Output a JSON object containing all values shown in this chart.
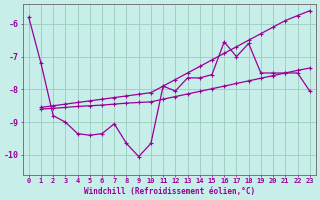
{
  "background_color": "#c8eeea",
  "grid_color": "#99ccbb",
  "line_color": "#990099",
  "xlabel": "Windchill (Refroidissement éolien,°C)",
  "xlim": [
    -0.5,
    23.5
  ],
  "ylim": [
    -10.6,
    -5.4
  ],
  "yticks": [
    -10,
    -9,
    -8,
    -7,
    -6
  ],
  "xticks": [
    0,
    1,
    2,
    3,
    4,
    5,
    6,
    7,
    8,
    9,
    10,
    11,
    12,
    13,
    14,
    15,
    16,
    17,
    18,
    19,
    20,
    21,
    22,
    23
  ],
  "s1_x": [
    0,
    1,
    2,
    3,
    4,
    5,
    6,
    7,
    8,
    9,
    10,
    11,
    12,
    13,
    14,
    15,
    16,
    17,
    18,
    19,
    20,
    21,
    22,
    23
  ],
  "s1_y": [
    -5.8,
    -7.2,
    -8.8,
    -9.0,
    -9.35,
    -9.4,
    -9.35,
    -9.05,
    -9.65,
    -10.05,
    -9.65,
    -7.9,
    -8.05,
    -7.65,
    -7.65,
    -7.55,
    -6.55,
    -7.0,
    -6.6,
    -7.5,
    -7.5,
    -7.5,
    -7.5,
    -8.05
  ],
  "s2_x": [
    1,
    2,
    3,
    4,
    5,
    6,
    7,
    8,
    9,
    10,
    11,
    12,
    13,
    14,
    15,
    16,
    17,
    18,
    19,
    20,
    21,
    22,
    23
  ],
  "s2_y": [
    -8.55,
    -8.5,
    -8.45,
    -8.4,
    -8.35,
    -8.3,
    -8.25,
    -8.2,
    -8.15,
    -8.1,
    -7.9,
    -7.7,
    -7.5,
    -7.3,
    -7.1,
    -6.9,
    -6.7,
    -6.5,
    -6.3,
    -6.1,
    -5.9,
    -5.75,
    -5.6
  ],
  "s3_x": [
    1,
    2,
    3,
    4,
    5,
    6,
    7,
    8,
    9,
    10,
    11,
    12,
    13,
    14,
    15,
    16,
    17,
    18,
    19,
    20,
    21,
    22,
    23
  ],
  "s3_y": [
    -8.6,
    -8.58,
    -8.55,
    -8.52,
    -8.5,
    -8.48,
    -8.45,
    -8.42,
    -8.4,
    -8.38,
    -8.3,
    -8.22,
    -8.14,
    -8.06,
    -7.98,
    -7.9,
    -7.82,
    -7.74,
    -7.66,
    -7.58,
    -7.5,
    -7.42,
    -7.35
  ]
}
